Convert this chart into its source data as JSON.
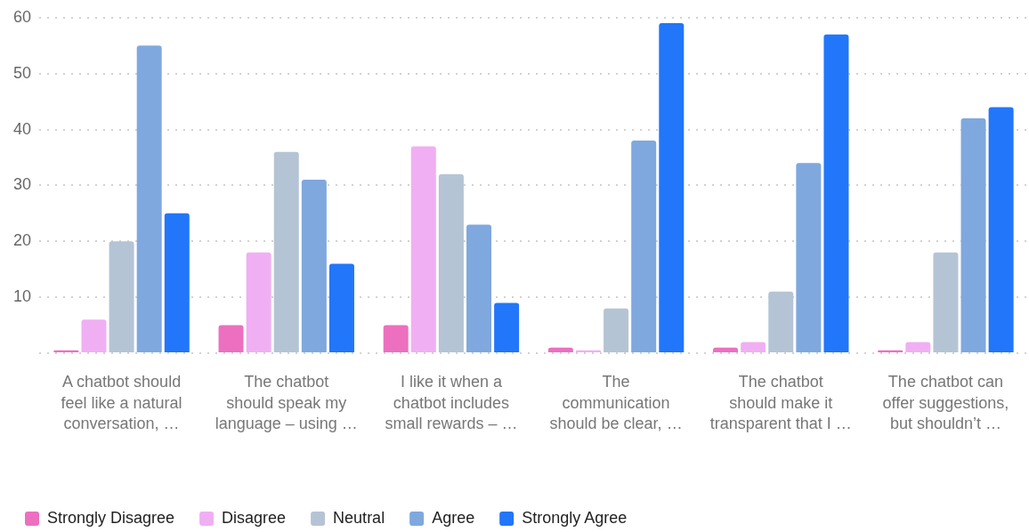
{
  "chart_data": {
    "type": "bar",
    "categories": [
      "A chatbot should feel like a natural conversation, …",
      "The chatbot should speak my language – using …",
      "I like it when a chatbot includes small rewards – …",
      "The communication should be clear, …",
      "The chatbot should make it transparent that I …",
      "The chatbot can offer suggestions, but shouldn’t …"
    ],
    "series": [
      {
        "name": "Strongly Disagree",
        "color": "#ec70bf",
        "values": [
          0.5,
          5,
          5,
          1,
          1,
          0.5
        ]
      },
      {
        "name": "Disagree",
        "color": "#f1aff3",
        "values": [
          6,
          18,
          37,
          0.5,
          2,
          2
        ]
      },
      {
        "name": "Neutral",
        "color": "#b5c4d4",
        "values": [
          20,
          36,
          32,
          8,
          11,
          18
        ]
      },
      {
        "name": "Agree",
        "color": "#7fa8de",
        "values": [
          55,
          31,
          23,
          38,
          34,
          42
        ]
      },
      {
        "name": "Strongly Agree",
        "color": "#2176fa",
        "values": [
          25,
          16,
          9,
          59,
          57,
          44
        ]
      }
    ],
    "ylim": [
      0,
      60
    ],
    "yticks": [
      {
        "value": 0,
        "label": null
      },
      10,
      20,
      30,
      40,
      50,
      60
    ],
    "grid": "y",
    "legend": "bottom left"
  }
}
